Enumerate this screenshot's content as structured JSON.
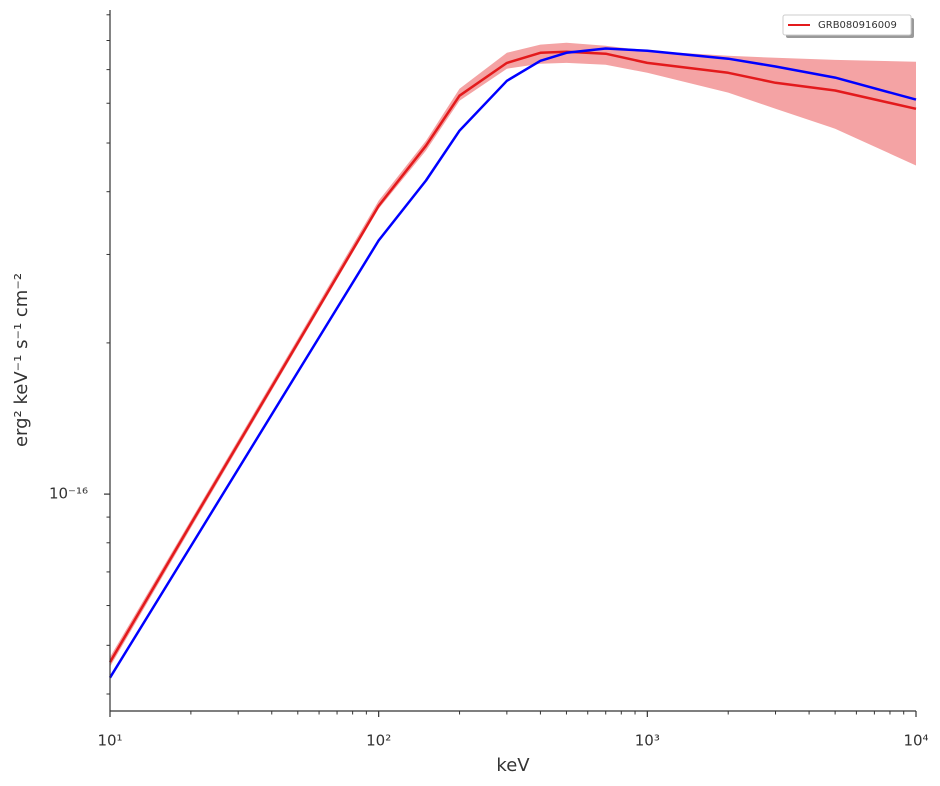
{
  "chart_data": {
    "type": "line",
    "xlabel": "keV",
    "ylabel": "erg² keV⁻¹ s⁻¹ cm⁻²",
    "xscale": "log",
    "yscale": "log",
    "xlim": [
      10,
      10000
    ],
    "ylim": [
      3.7e-17,
      9.2e-16
    ],
    "xticks": [
      {
        "value": 10,
        "label": "10¹"
      },
      {
        "value": 100,
        "label": "10²"
      },
      {
        "value": 1000,
        "label": "10³"
      },
      {
        "value": 10000,
        "label": "10⁴"
      }
    ],
    "yticks": [
      {
        "value": 1e-16,
        "label": "10⁻¹⁶"
      }
    ],
    "legend": "upper right",
    "x": [
      10,
      20,
      50,
      100,
      150,
      200,
      300,
      400,
      500,
      700,
      1000,
      2000,
      3000,
      5000,
      10000
    ],
    "series": [
      {
        "name": "GRB080916009",
        "color": "#e31a1c",
        "band_color": "#f4a3a4",
        "values": [
          4.63e-17,
          8.72e-17,
          2e-16,
          3.75e-16,
          4.94e-16,
          6.21e-16,
          7.22e-16,
          7.56e-16,
          7.6e-16,
          7.53e-16,
          7.22e-16,
          6.9e-16,
          6.59e-16,
          6.36e-16,
          5.85e-16
        ],
        "upper": [
          4.74e-17,
          8.88e-17,
          2.04e-16,
          3.84e-16,
          5.05e-16,
          6.41e-16,
          7.56e-16,
          7.85e-16,
          7.92e-16,
          7.81e-16,
          7.63e-16,
          7.46e-16,
          7.39e-16,
          7.32e-16,
          7.26e-16
        ],
        "lower": [
          4.53e-17,
          8.56e-17,
          1.97e-16,
          3.7e-16,
          4.83e-16,
          6.07e-16,
          7.03e-16,
          7.19e-16,
          7.22e-16,
          7.16e-16,
          6.9e-16,
          6.3e-16,
          5.85e-16,
          5.34e-16,
          4.51e-16
        ]
      },
      {
        "color": "#0000ff",
        "values": [
          4.31e-17,
          7.88e-17,
          1.75e-16,
          3.2e-16,
          4.21e-16,
          5.29e-16,
          6.65e-16,
          7.29e-16,
          7.56e-16,
          7.71e-16,
          7.63e-16,
          7.36e-16,
          7.1e-16,
          6.75e-16,
          6.1e-16
        ]
      }
    ]
  }
}
